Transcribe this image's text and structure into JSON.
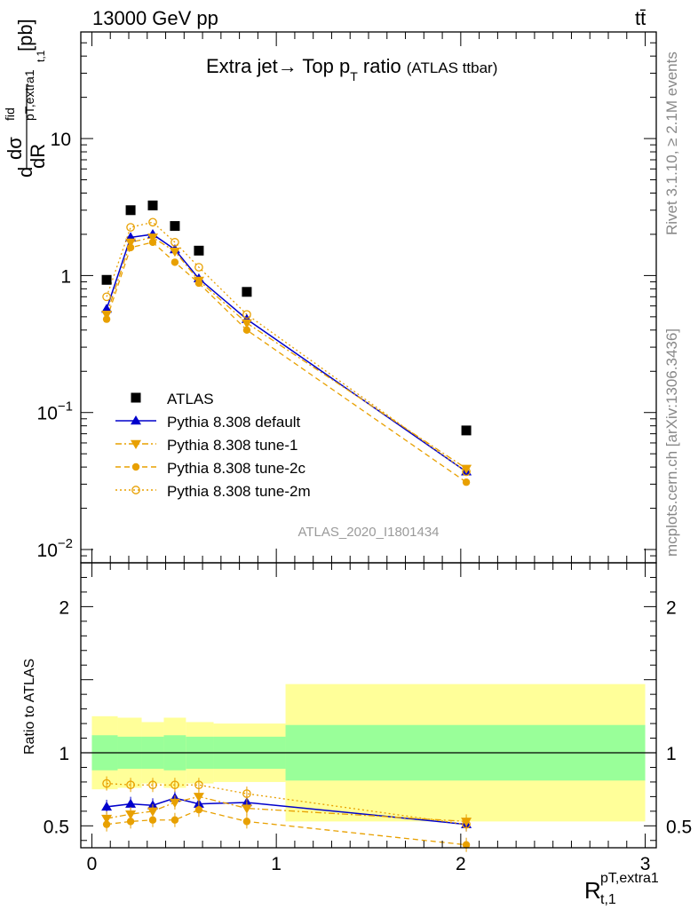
{
  "header": {
    "energy_label": "13000 GeV pp",
    "process_label": "tt̄"
  },
  "side_labels": {
    "rivet": "Rivet 3.1.10, ≥ 2.1M events",
    "mcplots": "mcplots.cern.ch [arXiv:1306.3436]"
  },
  "chart_data": [
    {
      "type": "line",
      "title": "Extra jet→ Top p",
      "title_sub": "T",
      "title_tail": " ratio",
      "title_note": "(ATLAS ttbar)",
      "analysis_label": "ATLAS_2020_I1801434",
      "yscale": "log",
      "ylim": [
        0.008,
        60
      ],
      "xlim": [
        -0.06,
        3.06
      ],
      "ylabel": {
        "d1": "d",
        "sigma": "dσ",
        "fid": "fid",
        "sub": "pT,extra1",
        "sub2": "t,1",
        "unit": "[pb]",
        "den": "dR"
      },
      "yticks": [
        {
          "value": 0.01,
          "label": "10",
          "exp": "−2"
        },
        {
          "value": 0.1,
          "label": "10",
          "exp": "−1"
        },
        {
          "value": 1,
          "label": "1",
          "exp": ""
        },
        {
          "value": 10,
          "label": "10",
          "exp": ""
        }
      ],
      "legend_position": "lower-left",
      "x": [
        0.08,
        0.21,
        0.33,
        0.45,
        0.58,
        0.84,
        2.03
      ],
      "series": [
        {
          "name": "ATLAS",
          "color": "#000000",
          "marker": "square",
          "line": "none",
          "values": [
            0.93,
            3.0,
            3.25,
            2.3,
            1.52,
            0.76,
            0.074
          ]
        },
        {
          "name": "Pythia 8.308 default",
          "color": "#0000cc",
          "marker": "triangle-up",
          "line": "solid",
          "values": [
            0.57,
            1.9,
            2.0,
            1.55,
            0.95,
            0.48,
            0.037
          ]
        },
        {
          "name": "Pythia 8.308 tune-1",
          "color": "#e8a000",
          "marker": "triangle-down",
          "line": "dashdot",
          "values": [
            0.52,
            1.75,
            1.9,
            1.5,
            0.92,
            0.45,
            0.039
          ]
        },
        {
          "name": "Pythia 8.308 tune-2c",
          "color": "#e8a000",
          "marker": "circle",
          "line": "dashed",
          "values": [
            0.48,
            1.6,
            1.75,
            1.25,
            0.88,
            0.4,
            0.031
          ]
        },
        {
          "name": "Pythia 8.308 tune-2m",
          "color": "#e8a000",
          "marker": "circle-open",
          "line": "dotted",
          "values": [
            0.7,
            2.25,
            2.45,
            1.75,
            1.15,
            0.52,
            0.037
          ]
        }
      ]
    },
    {
      "type": "line",
      "ylabel": "Ratio to ATLAS",
      "xlabel": "R",
      "xlabel_sup": "pT,extra1",
      "xlabel_sub": "t,1",
      "ylim": [
        0.35,
        2.3
      ],
      "xlim": [
        -0.06,
        3.06
      ],
      "yticks": [
        0.5,
        1,
        2
      ],
      "xticks": [
        0,
        1,
        2,
        3
      ],
      "bands": [
        {
          "x0": 0.0,
          "x1": 0.14,
          "yellow": [
            0.75,
            1.25
          ],
          "green": [
            0.88,
            1.12
          ]
        },
        {
          "x0": 0.14,
          "x1": 0.27,
          "yellow": [
            0.76,
            1.24
          ],
          "green": [
            0.89,
            1.11
          ]
        },
        {
          "x0": 0.27,
          "x1": 0.39,
          "yellow": [
            0.79,
            1.21
          ],
          "green": [
            0.89,
            1.11
          ]
        },
        {
          "x0": 0.39,
          "x1": 0.51,
          "yellow": [
            0.76,
            1.24
          ],
          "green": [
            0.88,
            1.12
          ]
        },
        {
          "x0": 0.51,
          "x1": 0.66,
          "yellow": [
            0.79,
            1.21
          ],
          "green": [
            0.89,
            1.11
          ]
        },
        {
          "x0": 0.66,
          "x1": 1.05,
          "yellow": [
            0.8,
            1.2
          ],
          "green": [
            0.89,
            1.11
          ]
        },
        {
          "x0": 1.05,
          "x1": 3.0,
          "yellow": [
            0.53,
            1.47
          ],
          "green": [
            0.81,
            1.19
          ]
        }
      ],
      "series": [
        {
          "name": "Pythia 8.308 default",
          "values": [
            0.63,
            0.65,
            0.64,
            0.69,
            0.65,
            0.66,
            0.51
          ]
        },
        {
          "name": "Pythia 8.308 tune-1",
          "values": [
            0.55,
            0.58,
            0.6,
            0.66,
            0.7,
            0.62,
            0.53
          ]
        },
        {
          "name": "Pythia 8.308 tune-2c",
          "values": [
            0.51,
            0.53,
            0.54,
            0.54,
            0.61,
            0.53,
            0.37
          ]
        },
        {
          "name": "Pythia 8.308 tune-2m",
          "values": [
            0.79,
            0.78,
            0.78,
            0.78,
            0.78,
            0.72,
            0.51
          ]
        }
      ]
    }
  ]
}
